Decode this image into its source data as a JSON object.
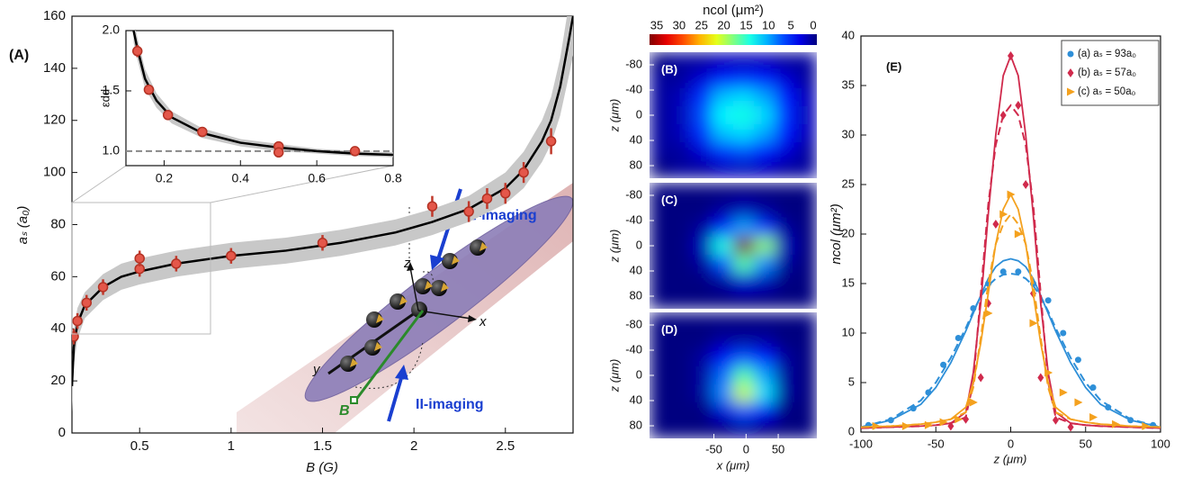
{
  "chart_data": [
    {
      "type": "scatter",
      "panel_label": "(A)",
      "xlabel": "B (G)",
      "ylabel": "aₛ (a₀)",
      "xlim": [
        0.13,
        2.87
      ],
      "ylim": [
        0,
        160
      ],
      "xticks": [
        0.5,
        1,
        1.5,
        2,
        2.5
      ],
      "yticks": [
        0,
        20,
        40,
        60,
        80,
        100,
        120,
        140,
        160
      ],
      "color": "#e4574a",
      "x": [
        0.14,
        0.16,
        0.21,
        0.3,
        0.5,
        0.5,
        0.7,
        1.0,
        1.5,
        2.1,
        2.3,
        2.4,
        2.5,
        2.6,
        2.75
      ],
      "values": [
        37,
        43,
        50,
        56,
        63,
        67,
        65,
        68,
        73,
        87,
        85,
        90,
        92,
        100,
        112
      ],
      "errors": [
        3,
        3,
        3,
        3,
        3,
        3,
        3,
        3,
        3,
        4,
        4,
        4,
        4,
        4,
        5
      ],
      "fit": {
        "x": [
          0.13,
          0.14,
          0.16,
          0.2,
          0.3,
          0.4,
          0.5,
          0.7,
          1.0,
          1.3,
          1.6,
          1.9,
          2.1,
          2.3,
          2.5,
          2.6,
          2.7,
          2.75,
          2.8,
          2.85,
          2.87
        ],
        "values": [
          18,
          33,
          42,
          49,
          56,
          60,
          62,
          65,
          68,
          70,
          73,
          77,
          81,
          86,
          94,
          101,
          112,
          120,
          133,
          152,
          160
        ],
        "lower": [
          8,
          26,
          36,
          44,
          51,
          55,
          57,
          60,
          63,
          65,
          68,
          72,
          76,
          81,
          88,
          94,
          104,
          111,
          122,
          138,
          145
        ],
        "upper": [
          28,
          40,
          48,
          54,
          61,
          65,
          67,
          70,
          73,
          75,
          78,
          82,
          86,
          91,
          100,
          108,
          120,
          129,
          144,
          166,
          175
        ]
      },
      "annotations": [
        "⊥-imaging",
        "II-imaging",
        "B",
        "x",
        "y",
        "z"
      ],
      "inset": {
        "type": "scatter",
        "ylabel": "εdd",
        "xlim": [
          0.1,
          0.8
        ],
        "ylim": [
          0.88,
          2.0
        ],
        "xticks": [
          0.2,
          0.4,
          0.6,
          0.8
        ],
        "yticks": [
          {
            "value": 1,
            "label": "1.0"
          },
          1.5,
          {
            "value": 2,
            "label": "2.0"
          }
        ],
        "x": [
          0.13,
          0.16,
          0.21,
          0.3,
          0.5,
          0.5,
          0.7
        ],
        "values": [
          1.83,
          1.51,
          1.3,
          1.16,
          1.04,
          0.99,
          1.0
        ],
        "errors": [
          0.05,
          0.04,
          0.03,
          0.03,
          0.02,
          0.02,
          0.02
        ],
        "fit": {
          "x": [
            0.12,
            0.13,
            0.15,
            0.18,
            0.22,
            0.3,
            0.4,
            0.5,
            0.6,
            0.7,
            0.8
          ],
          "values": [
            2.0,
            1.85,
            1.6,
            1.42,
            1.28,
            1.15,
            1.07,
            1.03,
            1.0,
            0.98,
            0.97
          ],
          "lower": [
            1.9,
            1.76,
            1.52,
            1.36,
            1.23,
            1.11,
            1.04,
            1.0,
            0.98,
            0.96,
            0.95
          ],
          "upper": [
            2.1,
            1.94,
            1.68,
            1.48,
            1.33,
            1.19,
            1.1,
            1.06,
            1.02,
            1.0,
            0.99
          ]
        },
        "reference_line": 1
      }
    },
    {
      "type": "heatmap",
      "colorbar_label": "ncol (μm²)",
      "colormap": "jet",
      "clim": [
        0,
        35
      ],
      "colorbar_ticks": [
        35,
        30,
        25,
        20,
        15,
        10,
        5,
        0
      ],
      "xlabel": "x (μm)",
      "ylabel": "z (μm)",
      "xlim": [
        -150,
        110
      ],
      "ylim": [
        -100,
        100
      ],
      "xticks": [
        -50,
        0,
        50
      ],
      "yticks": [
        -80,
        -40,
        0,
        40,
        80
      ],
      "panels": [
        {
          "label": "(B)",
          "values": [
            [
              0,
              1,
              1,
              2,
              2,
              2,
              1,
              1
            ],
            [
              1,
              1,
              3,
              5,
              6,
              5,
              3,
              1
            ],
            [
              1,
              2,
              6,
              11,
              12,
              10,
              5,
              2
            ],
            [
              1,
              2,
              7,
              13,
              14,
              12,
              6,
              2
            ],
            [
              1,
              2,
              6,
              11,
              12,
              10,
              5,
              2
            ],
            [
              1,
              1,
              3,
              6,
              7,
              5,
              3,
              1
            ],
            [
              0,
              1,
              1,
              2,
              2,
              2,
              1,
              1
            ]
          ]
        },
        {
          "label": "(C)",
          "values": [
            [
              0,
              0,
              0,
              0,
              0,
              0,
              0,
              0
            ],
            [
              0,
              0,
              0,
              1,
              2,
              1,
              0,
              0
            ],
            [
              0,
              0,
              1,
              5,
              10,
              6,
              1,
              0
            ],
            [
              0,
              0,
              2,
              14,
              35,
              18,
              2,
              0
            ],
            [
              0,
              0,
              1,
              7,
              16,
              9,
              1,
              0
            ],
            [
              0,
              0,
              0,
              1,
              3,
              2,
              0,
              0
            ],
            [
              0,
              0,
              0,
              0,
              0,
              0,
              0,
              0
            ]
          ]
        },
        {
          "label": "(D)",
          "values": [
            [
              0,
              0,
              0,
              0,
              0,
              0,
              0,
              0
            ],
            [
              0,
              0,
              0,
              1,
              1,
              1,
              0,
              0
            ],
            [
              0,
              0,
              1,
              4,
              7,
              5,
              1,
              0
            ],
            [
              0,
              0,
              1,
              8,
              16,
              10,
              1,
              0
            ],
            [
              0,
              0,
              1,
              9,
              20,
              12,
              1,
              0
            ],
            [
              0,
              0,
              0,
              3,
              7,
              4,
              0,
              0
            ],
            [
              0,
              0,
              0,
              0,
              1,
              0,
              0,
              0
            ]
          ]
        }
      ]
    },
    {
      "type": "line",
      "panel_label": "(E)",
      "xlabel": "z (μm)",
      "ylabel": "ncol (μm²)",
      "xlim": [
        -100,
        100
      ],
      "ylim": [
        0,
        40
      ],
      "xticks": [
        -100,
        -50,
        0,
        50,
        100
      ],
      "yticks": [
        0,
        5,
        10,
        15,
        20,
        25,
        30,
        35,
        40
      ],
      "legend": "upper right",
      "fit_x": [
        -100,
        -80,
        -60,
        -50,
        -40,
        -30,
        -25,
        -20,
        -15,
        -10,
        -5,
        0,
        5,
        10,
        15,
        20,
        25,
        30,
        40,
        50,
        60,
        80,
        100
      ],
      "series": [
        {
          "name": "(a) aₛ = 93a₀",
          "color": "#2e8fd8",
          "marker": "circle",
          "x": [
            -95,
            -80,
            -65,
            -55,
            -45,
            -35,
            -25,
            -15,
            -5,
            5,
            15,
            25,
            35,
            45,
            55,
            65,
            80,
            95
          ],
          "values": [
            0.7,
            1.2,
            2.4,
            4,
            6.8,
            9.5,
            12.5,
            15,
            16.2,
            16.2,
            15,
            13.3,
            10,
            7.3,
            4.5,
            2.5,
            1.2,
            0.7
          ],
          "fit_values": [
            0.5,
            1.2,
            2.8,
            4.5,
            7,
            10.2,
            12,
            13.8,
            15.5,
            16.7,
            17.3,
            17.5,
            17.3,
            16.7,
            15.5,
            13.8,
            12,
            10.2,
            7,
            4.5,
            2.8,
            1.2,
            0.5
          ],
          "fit_dashed_values": [
            0.5,
            1.3,
            3.2,
            5,
            7.5,
            10.5,
            12.2,
            13.7,
            14.8,
            15.5,
            15.9,
            16,
            15.9,
            15.5,
            14.8,
            13.7,
            12.2,
            10.5,
            7.5,
            5,
            3.2,
            1.3,
            0.5
          ]
        },
        {
          "name": "(b) aₛ = 57a₀",
          "color": "#d02a4c",
          "marker": "diamond",
          "x": [
            -40,
            -30,
            -20,
            -15,
            -10,
            -5,
            0,
            5,
            10,
            15,
            20,
            30,
            40
          ],
          "values": [
            0.6,
            1.3,
            5.5,
            13,
            21,
            32,
            38,
            33,
            25,
            14,
            5.5,
            1.2,
            0.5
          ],
          "fit_values": [
            0.4,
            0.5,
            0.6,
            0.7,
            0.9,
            2,
            6,
            13,
            22,
            30,
            36,
            38,
            36,
            30,
            22,
            13,
            6,
            2,
            0.9,
            0.7,
            0.6,
            0.5,
            0.4
          ],
          "fit_dashed_values": [
            0.4,
            0.5,
            0.6,
            0.7,
            0.9,
            1.5,
            5,
            14,
            23,
            29,
            32,
            33,
            32,
            29,
            23,
            14,
            5,
            1.5,
            0.9,
            0.7,
            0.6,
            0.5,
            0.4
          ]
        },
        {
          "name": "(c) aₛ = 50a₀",
          "color": "#f4a11e",
          "marker": "triangle",
          "x": [
            -90,
            -70,
            -55,
            -45,
            -35,
            -25,
            -15,
            -5,
            0,
            5,
            15,
            25,
            35,
            45,
            55,
            70,
            90
          ],
          "values": [
            0.6,
            0.6,
            0.7,
            1,
            1.3,
            3,
            12,
            22,
            24,
            20,
            11,
            6,
            4,
            3,
            1.5,
            0.8,
            0.6
          ],
          "fit_values": [
            0.5,
            0.6,
            0.8,
            1,
            1.3,
            2.5,
            5,
            9,
            14,
            19,
            22.5,
            24,
            22.5,
            19,
            14,
            9,
            5,
            2.5,
            1.3,
            1,
            0.8,
            0.6,
            0.5
          ],
          "fit_dashed_values": [
            0.5,
            0.6,
            0.8,
            1,
            1.3,
            2,
            4.5,
            9.5,
            15,
            19,
            21,
            22,
            21,
            19,
            15,
            9.5,
            4.5,
            2,
            1.3,
            1,
            0.8,
            0.6,
            0.5
          ]
        }
      ]
    }
  ]
}
